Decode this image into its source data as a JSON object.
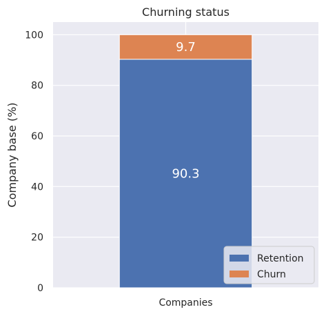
{
  "chart_data": {
    "type": "bar",
    "stacked": true,
    "title": "Churning status",
    "xlabel": "",
    "ylabel": "Company base (%)",
    "categories": [
      "Companies"
    ],
    "series": [
      {
        "name": "Retention",
        "values": [
          90.3
        ],
        "color": "#4c72b0"
      },
      {
        "name": "Churn",
        "values": [
          9.7
        ],
        "color": "#dd8452"
      }
    ],
    "data_labels": [
      "90.3",
      "9.7"
    ],
    "ylim": [
      0,
      105
    ],
    "yticks": [
      0,
      20,
      40,
      60,
      80,
      100
    ],
    "grid": true,
    "legend_position": "bottom-right",
    "background_color": "#eaeaf2"
  }
}
